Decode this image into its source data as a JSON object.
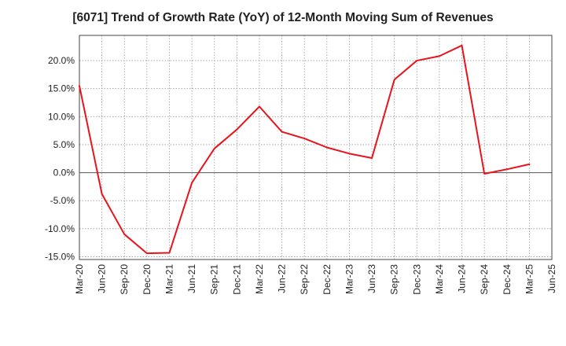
{
  "chart_data": {
    "type": "line",
    "title": "[6071]  Trend of Growth Rate (YoY) of 12-Month Moving Sum of Revenues",
    "xlabel": "",
    "ylabel": "",
    "x_ticks": [
      "Mar-20",
      "Jun-20",
      "Sep-20",
      "Dec-20",
      "Mar-21",
      "Jun-21",
      "Sep-21",
      "Dec-21",
      "Mar-22",
      "Jun-22",
      "Sep-22",
      "Dec-22",
      "Mar-23",
      "Jun-23",
      "Sep-23",
      "Dec-23",
      "Mar-24",
      "Jun-24",
      "Sep-24",
      "Dec-24",
      "Mar-25",
      "Jun-25"
    ],
    "y_ticks": [
      "20.0%",
      "15.0%",
      "10.0%",
      "5.0%",
      "0.0%",
      "-5.0%",
      "-10.0%",
      "-15.0%"
    ],
    "y_tick_values": [
      20,
      15,
      10,
      5,
      0,
      -5,
      -10,
      -15
    ],
    "ylim": [
      -15.5,
      24.5
    ],
    "grid": true,
    "series": [
      {
        "color": "#e8141b",
        "x": [
          "Mar-20",
          "Jun-20",
          "Sep-20",
          "Dec-20",
          "Mar-21",
          "Jun-21",
          "Sep-21",
          "Dec-21",
          "Mar-22",
          "Jun-22",
          "Sep-22",
          "Dec-22",
          "Mar-23",
          "Jun-23",
          "Sep-23",
          "Dec-23",
          "Mar-24",
          "Jun-24",
          "Sep-24",
          "Dec-24",
          "Mar-25"
        ],
        "values": [
          15.5,
          -3.8,
          -11.0,
          -14.4,
          -14.3,
          -1.8,
          4.3,
          7.7,
          11.8,
          7.3,
          6.1,
          4.5,
          3.4,
          2.6,
          16.6,
          20.0,
          20.8,
          22.7,
          -0.2,
          0.6,
          1.5
        ]
      }
    ]
  }
}
